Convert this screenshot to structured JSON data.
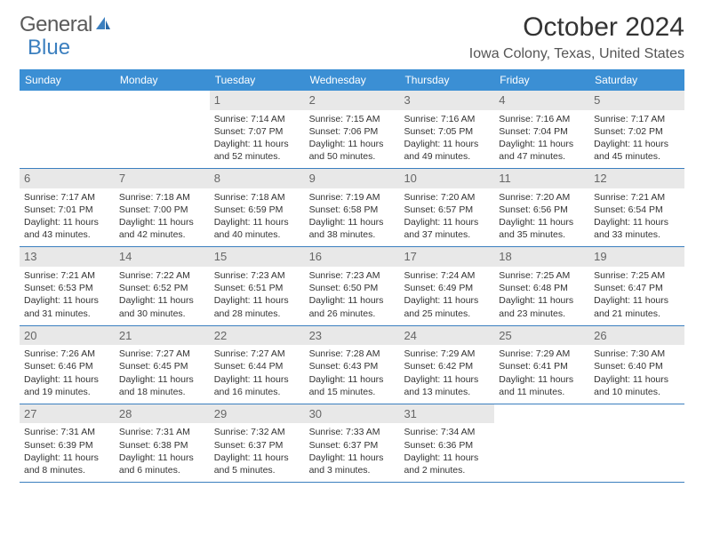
{
  "logo": {
    "text1": "General",
    "text2": "Blue",
    "color1": "#5a5a5a",
    "color2": "#3b7fbf"
  },
  "title": "October 2024",
  "subtitle": "Iowa Colony, Texas, United States",
  "header_bg": "#3b8fd4",
  "border_color": "#3b7fbf",
  "daystrip_bg": "#e8e8e8",
  "background_color": "#ffffff",
  "text_color": "#333333",
  "font_family": "Arial, Helvetica, sans-serif",
  "day_labels": [
    "Sunday",
    "Monday",
    "Tuesday",
    "Wednesday",
    "Thursday",
    "Friday",
    "Saturday"
  ],
  "weeks": [
    [
      null,
      null,
      {
        "n": "1",
        "sr": "7:14 AM",
        "ss": "7:07 PM",
        "dl": "11 hours and 52 minutes."
      },
      {
        "n": "2",
        "sr": "7:15 AM",
        "ss": "7:06 PM",
        "dl": "11 hours and 50 minutes."
      },
      {
        "n": "3",
        "sr": "7:16 AM",
        "ss": "7:05 PM",
        "dl": "11 hours and 49 minutes."
      },
      {
        "n": "4",
        "sr": "7:16 AM",
        "ss": "7:04 PM",
        "dl": "11 hours and 47 minutes."
      },
      {
        "n": "5",
        "sr": "7:17 AM",
        "ss": "7:02 PM",
        "dl": "11 hours and 45 minutes."
      }
    ],
    [
      {
        "n": "6",
        "sr": "7:17 AM",
        "ss": "7:01 PM",
        "dl": "11 hours and 43 minutes."
      },
      {
        "n": "7",
        "sr": "7:18 AM",
        "ss": "7:00 PM",
        "dl": "11 hours and 42 minutes."
      },
      {
        "n": "8",
        "sr": "7:18 AM",
        "ss": "6:59 PM",
        "dl": "11 hours and 40 minutes."
      },
      {
        "n": "9",
        "sr": "7:19 AM",
        "ss": "6:58 PM",
        "dl": "11 hours and 38 minutes."
      },
      {
        "n": "10",
        "sr": "7:20 AM",
        "ss": "6:57 PM",
        "dl": "11 hours and 37 minutes."
      },
      {
        "n": "11",
        "sr": "7:20 AM",
        "ss": "6:56 PM",
        "dl": "11 hours and 35 minutes."
      },
      {
        "n": "12",
        "sr": "7:21 AM",
        "ss": "6:54 PM",
        "dl": "11 hours and 33 minutes."
      }
    ],
    [
      {
        "n": "13",
        "sr": "7:21 AM",
        "ss": "6:53 PM",
        "dl": "11 hours and 31 minutes."
      },
      {
        "n": "14",
        "sr": "7:22 AM",
        "ss": "6:52 PM",
        "dl": "11 hours and 30 minutes."
      },
      {
        "n": "15",
        "sr": "7:23 AM",
        "ss": "6:51 PM",
        "dl": "11 hours and 28 minutes."
      },
      {
        "n": "16",
        "sr": "7:23 AM",
        "ss": "6:50 PM",
        "dl": "11 hours and 26 minutes."
      },
      {
        "n": "17",
        "sr": "7:24 AM",
        "ss": "6:49 PM",
        "dl": "11 hours and 25 minutes."
      },
      {
        "n": "18",
        "sr": "7:25 AM",
        "ss": "6:48 PM",
        "dl": "11 hours and 23 minutes."
      },
      {
        "n": "19",
        "sr": "7:25 AM",
        "ss": "6:47 PM",
        "dl": "11 hours and 21 minutes."
      }
    ],
    [
      {
        "n": "20",
        "sr": "7:26 AM",
        "ss": "6:46 PM",
        "dl": "11 hours and 19 minutes."
      },
      {
        "n": "21",
        "sr": "7:27 AM",
        "ss": "6:45 PM",
        "dl": "11 hours and 18 minutes."
      },
      {
        "n": "22",
        "sr": "7:27 AM",
        "ss": "6:44 PM",
        "dl": "11 hours and 16 minutes."
      },
      {
        "n": "23",
        "sr": "7:28 AM",
        "ss": "6:43 PM",
        "dl": "11 hours and 15 minutes."
      },
      {
        "n": "24",
        "sr": "7:29 AM",
        "ss": "6:42 PM",
        "dl": "11 hours and 13 minutes."
      },
      {
        "n": "25",
        "sr": "7:29 AM",
        "ss": "6:41 PM",
        "dl": "11 hours and 11 minutes."
      },
      {
        "n": "26",
        "sr": "7:30 AM",
        "ss": "6:40 PM",
        "dl": "11 hours and 10 minutes."
      }
    ],
    [
      {
        "n": "27",
        "sr": "7:31 AM",
        "ss": "6:39 PM",
        "dl": "11 hours and 8 minutes."
      },
      {
        "n": "28",
        "sr": "7:31 AM",
        "ss": "6:38 PM",
        "dl": "11 hours and 6 minutes."
      },
      {
        "n": "29",
        "sr": "7:32 AM",
        "ss": "6:37 PM",
        "dl": "11 hours and 5 minutes."
      },
      {
        "n": "30",
        "sr": "7:33 AM",
        "ss": "6:37 PM",
        "dl": "11 hours and 3 minutes."
      },
      {
        "n": "31",
        "sr": "7:34 AM",
        "ss": "6:36 PM",
        "dl": "11 hours and 2 minutes."
      },
      null,
      null
    ]
  ],
  "labels": {
    "sunrise": "Sunrise: ",
    "sunset": "Sunset: ",
    "daylight": "Daylight: "
  }
}
